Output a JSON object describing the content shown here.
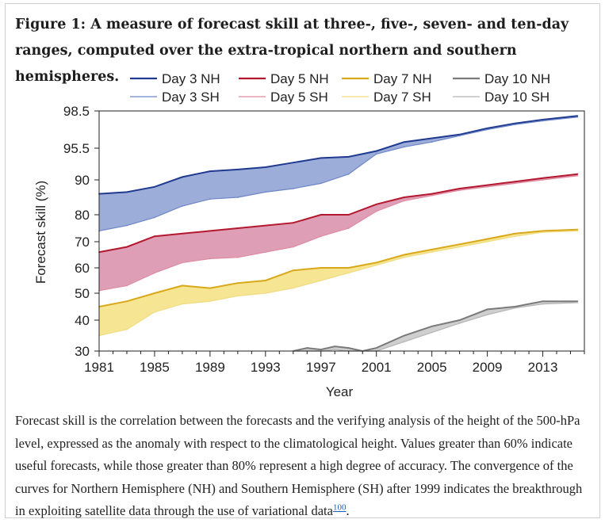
{
  "figure": {
    "title": "Figure 1: A measure of forecast skill at three-, five-, seven- and ten-day ranges, computed over the extra-tropical northern and southern hemispheres.",
    "caption": "Forecast skill is the correlation between the forecasts and the verifying analysis of the height of the 500-hPa level, expressed as the anomaly with respect to the climatological height. Values greater than 60% indicate useful forecasts, while those greater than 80% represent a high degree of accuracy. The convergence of the curves for Northern Hemisphere (NH) and Southern Hemisphere (SH) after 1999 indicates the breakthrough in exploiting satellite data through the use of variational data",
    "caption_ref": "100",
    "caption_end": "."
  },
  "chart_data": {
    "type": "line",
    "xlabel": "Year",
    "ylabel": "Forecast skill (%)",
    "xlim": [
      1981,
      2016
    ],
    "ylim": [
      30,
      98.5
    ],
    "y_scale": "nonlinear (scale compresses toward 100)",
    "xticks": [
      1981,
      1985,
      1989,
      1993,
      1997,
      2001,
      2005,
      2009,
      2013
    ],
    "yticks": [
      30,
      40,
      50,
      60,
      70,
      80,
      90,
      95.5,
      98.5
    ],
    "legend_position": "top",
    "grid": false,
    "series": [
      {
        "name": "Day 3 NH",
        "group": "d3",
        "hemisphere": "NH",
        "color": "#1f3a8f",
        "x": [
          1981,
          1983,
          1985,
          1987,
          1989,
          1991,
          1993,
          1995,
          1997,
          1999,
          2001,
          2003,
          2005,
          2007,
          2009,
          2011,
          2013,
          2015.5
        ],
        "y": [
          86,
          86.5,
          88,
          90.5,
          91.5,
          91.8,
          92.2,
          93,
          93.8,
          94,
          95,
          96,
          96.3,
          96.6,
          97.1,
          97.5,
          97.8,
          98.1
        ]
      },
      {
        "name": "Day 3 SH",
        "group": "d3",
        "hemisphere": "SH",
        "color": "#6d86c8",
        "x": [
          1981,
          1983,
          1985,
          1987,
          1989,
          1991,
          1993,
          1995,
          1997,
          1999,
          2001,
          2003,
          2005,
          2007,
          2009,
          2011,
          2013,
          2015.5
        ],
        "y": [
          74,
          76,
          79,
          82.5,
          84.5,
          85,
          86.5,
          87.5,
          89,
          91,
          94.5,
          95.6,
          96,
          96.5,
          97,
          97.4,
          97.7,
          98
        ]
      },
      {
        "name": "Day 5 NH",
        "group": "d5",
        "hemisphere": "NH",
        "color": "#b3182e",
        "x": [
          1981,
          1983,
          1985,
          1987,
          1989,
          1991,
          1993,
          1995,
          1997,
          1999,
          2001,
          2003,
          2005,
          2007,
          2009,
          2011,
          2013,
          2015.5
        ],
        "y": [
          66,
          68,
          72,
          73,
          74,
          75,
          76,
          77,
          80,
          80,
          83,
          85,
          86,
          87.5,
          88.5,
          89.5,
          90.3,
          91
        ]
      },
      {
        "name": "Day 5 SH",
        "group": "d5",
        "hemisphere": "SH",
        "color": "#e08aa0",
        "x": [
          1981,
          1983,
          1985,
          1987,
          1989,
          1991,
          1993,
          1995,
          1997,
          1999,
          2001,
          2003,
          2005,
          2007,
          2009,
          2011,
          2013,
          2015.5
        ],
        "y": [
          51,
          53,
          58,
          62,
          63.5,
          64,
          66,
          68,
          72,
          75,
          81,
          84,
          85.5,
          87,
          88,
          89,
          90,
          90.7
        ]
      },
      {
        "name": "Day 7 NH",
        "group": "d7",
        "hemisphere": "NH",
        "color": "#d9a81a",
        "x": [
          1981,
          1983,
          1985,
          1987,
          1989,
          1991,
          1993,
          1995,
          1997,
          1999,
          2001,
          2003,
          2005,
          2007,
          2009,
          2011,
          2013,
          2015.5
        ],
        "y": [
          45,
          47,
          50,
          53,
          52,
          54,
          55,
          59,
          60,
          60,
          62,
          65,
          67,
          69,
          71,
          73,
          74,
          74.5
        ]
      },
      {
        "name": "Day 7 SH",
        "group": "d7",
        "hemisphere": "SH",
        "color": "#f0dc82",
        "x": [
          1981,
          1983,
          1985,
          1987,
          1989,
          1991,
          1993,
          1995,
          1997,
          1999,
          2001,
          2003,
          2005,
          2007,
          2009,
          2011,
          2013,
          2015.5
        ],
        "y": [
          35,
          37,
          43,
          46,
          47,
          49,
          50,
          52,
          55,
          58,
          61,
          64,
          66,
          68,
          70,
          72,
          73.5,
          74
        ]
      },
      {
        "name": "Day 10 NH",
        "group": "d10",
        "hemisphere": "NH",
        "color": "#7a7a7a",
        "x": [
          1995,
          1996,
          1997,
          1998,
          1999,
          2000,
          2001,
          2003,
          2005,
          2007,
          2009,
          2011,
          2013,
          2015.5
        ],
        "y": [
          30,
          31,
          30.5,
          31.5,
          31,
          30,
          31,
          35,
          38,
          40,
          44,
          45,
          47,
          47
        ]
      },
      {
        "name": "Day 10 SH",
        "group": "d10",
        "hemisphere": "SH",
        "color": "#b5b5b5",
        "x": [
          1995,
          1996,
          1997,
          1998,
          1999,
          2000,
          2001,
          2003,
          2005,
          2007,
          2009,
          2011,
          2013,
          2015.5
        ],
        "y": [
          30,
          30,
          30,
          30.5,
          30,
          30,
          30,
          33,
          36,
          39,
          42,
          44.5,
          46,
          46.5
        ]
      }
    ],
    "band_fills": {
      "d3": "#9dadd9",
      "d5": "#de9fb6",
      "d7": "#f6e592",
      "d10": "#cfcfcf"
    }
  }
}
